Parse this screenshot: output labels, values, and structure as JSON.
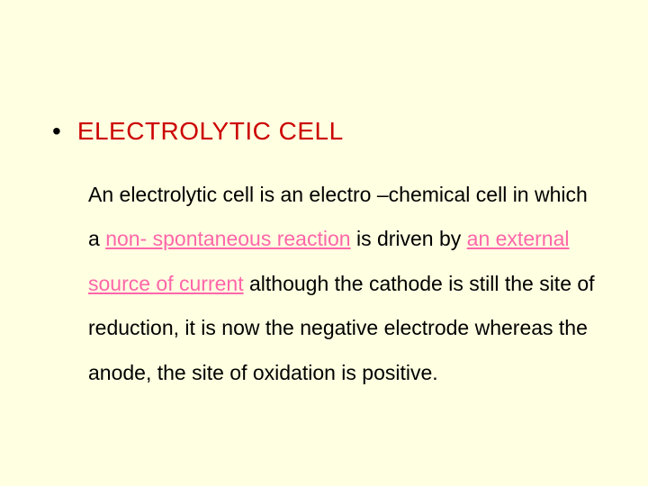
{
  "slide": {
    "background_color": "#ffffe1",
    "title": {
      "bullet": "•",
      "text": "ELECTROLYTIC CELL",
      "color": "#cc0000",
      "fontsize": 28
    },
    "body": {
      "fontsize": 23,
      "text_color": "#000000",
      "highlight_color": "#ff66aa",
      "line_height": 2.15,
      "part1": "An electrolytic cell is an electro –chemical cell in which a ",
      "highlight1": "non- spontaneous reaction",
      "part2": " is driven by ",
      "highlight2": "an external source of current",
      "part3": " although the cathode is  still the site of reduction, it is now the negative electrode whereas the anode, the site of oxidation is positive."
    }
  }
}
